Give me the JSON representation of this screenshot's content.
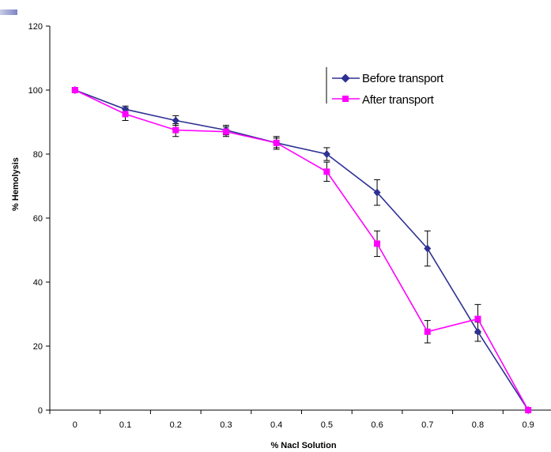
{
  "chart_data": {
    "type": "line",
    "title": "",
    "xlabel": "% Nacl Solution",
    "ylabel": "% Hemolysis",
    "categories": [
      "0",
      "0.1",
      "0.2",
      "0.3",
      "0.4",
      "0.5",
      "0.6",
      "0.7",
      "0.8",
      "0.9"
    ],
    "y_ticks": [
      "0",
      "20",
      "40",
      "60",
      "80",
      "100",
      "120"
    ],
    "ylim": [
      0,
      120
    ],
    "grid": false,
    "legend_position": "top-right",
    "series": [
      {
        "name": "Before transport",
        "color": "#2e3192",
        "marker": "diamond",
        "values": [
          100,
          94,
          90.5,
          87.5,
          83.5,
          80,
          68,
          50.5,
          24.5,
          0
        ],
        "error": [
          0,
          1,
          1.5,
          1.5,
          1.5,
          2,
          4,
          5.5,
          3,
          0
        ]
      },
      {
        "name": "After transport",
        "color": "#ff00ff",
        "marker": "square",
        "values": [
          100,
          92.5,
          87.5,
          87,
          83.5,
          74.5,
          52,
          24.5,
          28.5,
          0
        ],
        "error": [
          0,
          2,
          2,
          1.5,
          2,
          3,
          4,
          3.5,
          4.5,
          0
        ]
      }
    ]
  }
}
